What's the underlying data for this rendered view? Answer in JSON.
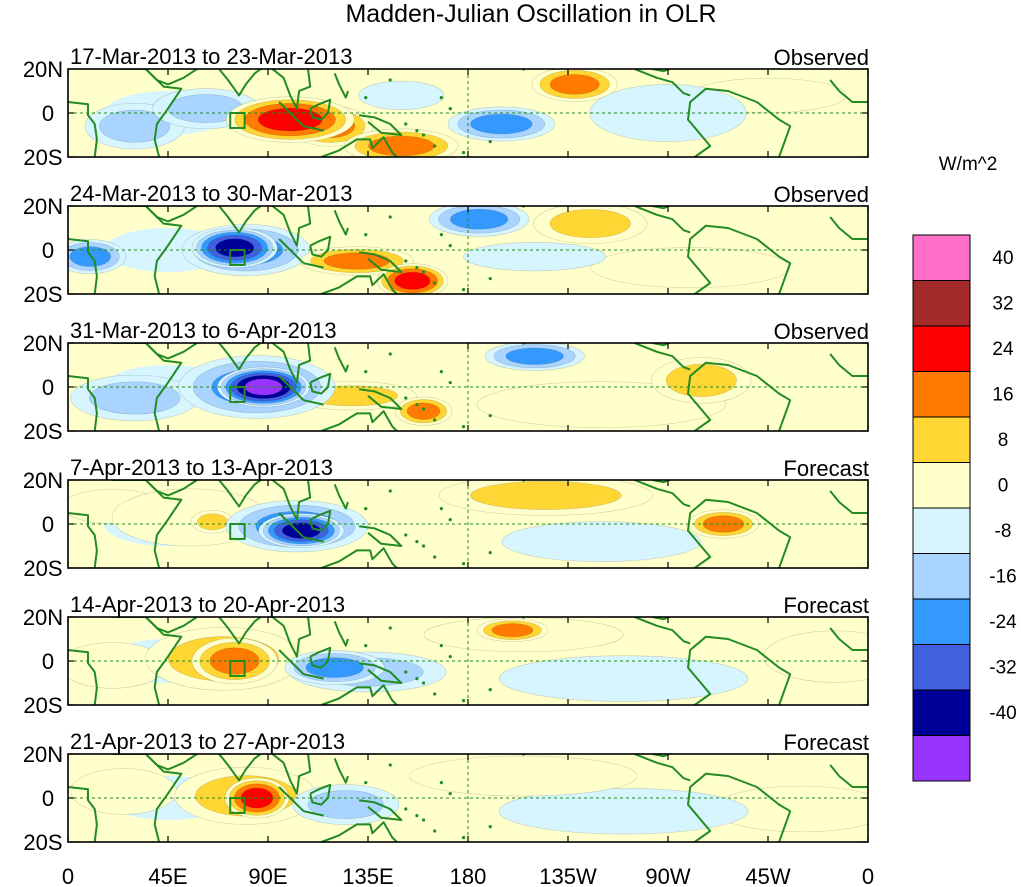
{
  "chart_data": {
    "type": "heatmap",
    "title": "Madden-Julian Oscillation in OLR",
    "colorbar": {
      "unit_label": "W/m^2",
      "tick_labels": [
        "40",
        "32",
        "24",
        "16",
        "8",
        "0",
        "-8",
        "-16",
        "-24",
        "-32",
        "-40"
      ],
      "colors_top_to_bottom": [
        "#ff6ec7",
        "#a52a2a",
        "#ff0000",
        "#ff7a00",
        "#ffd633",
        "#ffffcc",
        "#d6f5ff",
        "#a8d4ff",
        "#3399ff",
        "#4060e0",
        "#000099",
        "#9933ff"
      ]
    },
    "x_axis": {
      "tick_labels": [
        "0",
        "45E",
        "90E",
        "135E",
        "180",
        "135W",
        "90W",
        "45W",
        "0"
      ],
      "range_degrees_east": [
        0,
        360
      ]
    },
    "y_axis": {
      "tick_labels": [
        "20N",
        "0",
        "20S"
      ],
      "range_degrees_north": [
        -20,
        20
      ]
    },
    "panels": [
      {
        "period": "17-Mar-2013 to 23-Mar-2013",
        "kind": "Observed",
        "anomalies": [
          {
            "lon": 100,
            "lat": -3,
            "value": 25,
            "sx": 18,
            "sy": 8
          },
          {
            "lon": 118,
            "lat": -6,
            "value": 18,
            "sx": 12,
            "sy": 7
          },
          {
            "lon": 150,
            "lat": -15,
            "value": 24,
            "sx": 16,
            "sy": 6
          },
          {
            "lon": 228,
            "lat": 13,
            "value": 17,
            "sx": 12,
            "sy": 6
          },
          {
            "lon": 195,
            "lat": -5,
            "value": -18,
            "sx": 15,
            "sy": 6
          },
          {
            "lon": 62,
            "lat": 2,
            "value": -16,
            "sx": 15,
            "sy": 7
          },
          {
            "lon": 30,
            "lat": -6,
            "value": -9,
            "sx": 14,
            "sy": 8
          },
          {
            "lon": 270,
            "lat": 0,
            "value": -8,
            "sx": 22,
            "sy": 10
          },
          {
            "lon": 315,
            "lat": 8,
            "value": 6,
            "sx": 22,
            "sy": 6
          },
          {
            "lon": 150,
            "lat": 8,
            "value": -8,
            "sx": 12,
            "sy": 5
          }
        ]
      },
      {
        "period": "24-Mar-2013 to 30-Mar-2013",
        "kind": "Observed",
        "anomalies": [
          {
            "lon": 75,
            "lat": 1,
            "value": -38,
            "sx": 12,
            "sy": 7
          },
          {
            "lon": 80,
            "lat": 0,
            "value": -20,
            "sx": 18,
            "sy": 9
          },
          {
            "lon": 130,
            "lat": -5,
            "value": 22,
            "sx": 16,
            "sy": 5
          },
          {
            "lon": 155,
            "lat": -14,
            "value": 26,
            "sx": 10,
            "sy": 6
          },
          {
            "lon": 185,
            "lat": 14,
            "value": -20,
            "sx": 14,
            "sy": 6
          },
          {
            "lon": 235,
            "lat": 12,
            "value": 10,
            "sx": 16,
            "sy": 7
          },
          {
            "lon": 10,
            "lat": -3,
            "value": -17,
            "sx": 10,
            "sy": 6
          },
          {
            "lon": 280,
            "lat": -8,
            "value": 7,
            "sx": 28,
            "sy": 7
          },
          {
            "lon": 210,
            "lat": -3,
            "value": -8,
            "sx": 20,
            "sy": 5
          }
        ]
      },
      {
        "period": "31-Mar-2013 to 6-Apr-2013",
        "kind": "Observed",
        "anomalies": [
          {
            "lon": 88,
            "lat": 0,
            "value": -42,
            "sx": 13,
            "sy": 7
          },
          {
            "lon": 85,
            "lat": 0,
            "value": -22,
            "sx": 22,
            "sy": 11
          },
          {
            "lon": 128,
            "lat": -4,
            "value": 12,
            "sx": 18,
            "sy": 5
          },
          {
            "lon": 160,
            "lat": -11,
            "value": 18,
            "sx": 8,
            "sy": 5
          },
          {
            "lon": 210,
            "lat": 14,
            "value": -19,
            "sx": 14,
            "sy": 5
          },
          {
            "lon": 285,
            "lat": 3,
            "value": 9,
            "sx": 14,
            "sy": 8
          },
          {
            "lon": 30,
            "lat": -5,
            "value": -9,
            "sx": 18,
            "sy": 8
          },
          {
            "lon": 240,
            "lat": -8,
            "value": 5,
            "sx": 35,
            "sy": 8
          }
        ]
      },
      {
        "period": "7-Apr-2013 to 13-Apr-2013",
        "kind": "Forecast",
        "anomalies": [
          {
            "lon": 105,
            "lat": -3,
            "value": -35,
            "sx": 12,
            "sy": 6
          },
          {
            "lon": 103,
            "lat": -1,
            "value": -20,
            "sx": 20,
            "sy": 9
          },
          {
            "lon": 65,
            "lat": 1,
            "value": 16,
            "sx": 6,
            "sy": 4
          },
          {
            "lon": 55,
            "lat": 3,
            "value": 7,
            "sx": 22,
            "sy": 10
          },
          {
            "lon": 295,
            "lat": 0,
            "value": 17,
            "sx": 10,
            "sy": 5
          },
          {
            "lon": 215,
            "lat": 13,
            "value": 9,
            "sx": 30,
            "sy": 7
          },
          {
            "lon": 240,
            "lat": -8,
            "value": -7,
            "sx": 28,
            "sy": 7
          },
          {
            "lon": 20,
            "lat": 8,
            "value": 6,
            "sx": 14,
            "sy": 6
          }
        ]
      },
      {
        "period": "14-Apr-2013 to 20-Apr-2013",
        "kind": "Forecast",
        "anomalies": [
          {
            "lon": 75,
            "lat": 0,
            "value": 19,
            "sx": 12,
            "sy": 8
          },
          {
            "lon": 70,
            "lat": 1,
            "value": 9,
            "sx": 22,
            "sy": 11
          },
          {
            "lon": 120,
            "lat": -3,
            "value": -22,
            "sx": 14,
            "sy": 6
          },
          {
            "lon": 135,
            "lat": -5,
            "value": -12,
            "sx": 22,
            "sy": 7
          },
          {
            "lon": 200,
            "lat": 14,
            "value": 17,
            "sx": 10,
            "sy": 4
          },
          {
            "lon": 205,
            "lat": 12,
            "value": 8,
            "sx": 28,
            "sy": 6
          },
          {
            "lon": 345,
            "lat": 2,
            "value": 7,
            "sx": 20,
            "sy": 9
          },
          {
            "lon": 250,
            "lat": -8,
            "value": -6,
            "sx": 35,
            "sy": 8
          },
          {
            "lon": 20,
            "lat": -2,
            "value": 6,
            "sx": 15,
            "sy": 8
          }
        ]
      },
      {
        "period": "21-Apr-2013 to 27-Apr-2013",
        "kind": "Forecast",
        "anomalies": [
          {
            "lon": 85,
            "lat": 0,
            "value": 27,
            "sx": 9,
            "sy": 7
          },
          {
            "lon": 80,
            "lat": 1,
            "value": 12,
            "sx": 20,
            "sy": 10
          },
          {
            "lon": 125,
            "lat": -3,
            "value": -12,
            "sx": 15,
            "sy": 7
          },
          {
            "lon": 205,
            "lat": 10,
            "value": 8,
            "sx": 32,
            "sy": 7
          },
          {
            "lon": 25,
            "lat": 3,
            "value": 6,
            "sx": 15,
            "sy": 8
          },
          {
            "lon": 250,
            "lat": -6,
            "value": -6,
            "sx": 35,
            "sy": 8
          },
          {
            "lon": 330,
            "lat": -5,
            "value": 5,
            "sx": 25,
            "sy": 8
          }
        ]
      }
    ]
  }
}
